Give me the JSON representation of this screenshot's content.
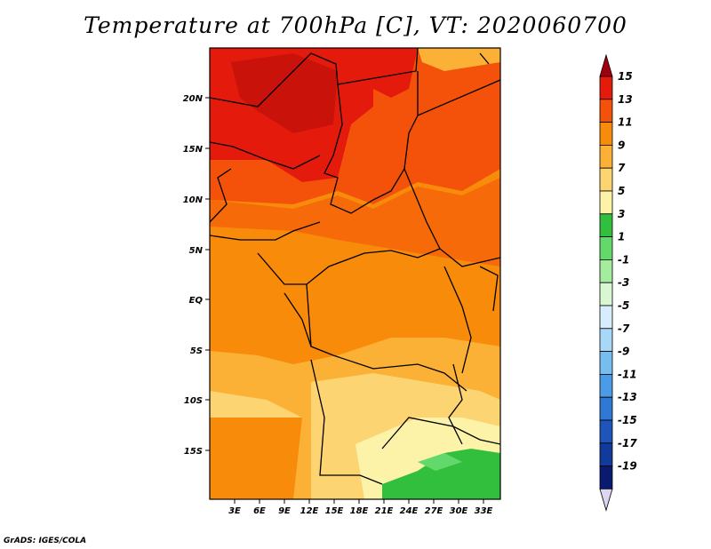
{
  "title": "Temperature at 700hPa [C], VT: 2020060700",
  "credit": "GrADS: IGES/COLA",
  "map": {
    "lat_ticks": [
      "20N",
      "15N",
      "10N",
      "5N",
      "EQ",
      "5S",
      "10S",
      "15S"
    ],
    "lon_ticks": [
      "3E",
      "6E",
      "9E",
      "12E",
      "15E",
      "18E",
      "21E",
      "24E",
      "27E",
      "30E",
      "33E"
    ],
    "lon_range": [
      0,
      35
    ],
    "lat_range": [
      -20,
      24
    ],
    "variable": "Temperature at 700hPa",
    "units": "C"
  },
  "colorbar": {
    "labels": [
      "15",
      "13",
      "11",
      "9",
      "7",
      "5",
      "3",
      "1",
      "-1",
      "-3",
      "-5",
      "-7",
      "-9",
      "-11",
      "-13",
      "-15",
      "-17",
      "-19"
    ],
    "colors": [
      "#a0000f",
      "#e41a0c",
      "#f4510a",
      "#f88b0a",
      "#fbb036",
      "#fcd472",
      "#fdf3a8",
      "#33bf3e",
      "#64d96b",
      "#a4ec9e",
      "#d9f8d2",
      "#d6eefc",
      "#a8d8f8",
      "#78bdf0",
      "#4b9be6",
      "#2f79d4",
      "#1d55bb",
      "#103a9b",
      "#0a1a70",
      "#dcd6f0"
    ]
  }
}
